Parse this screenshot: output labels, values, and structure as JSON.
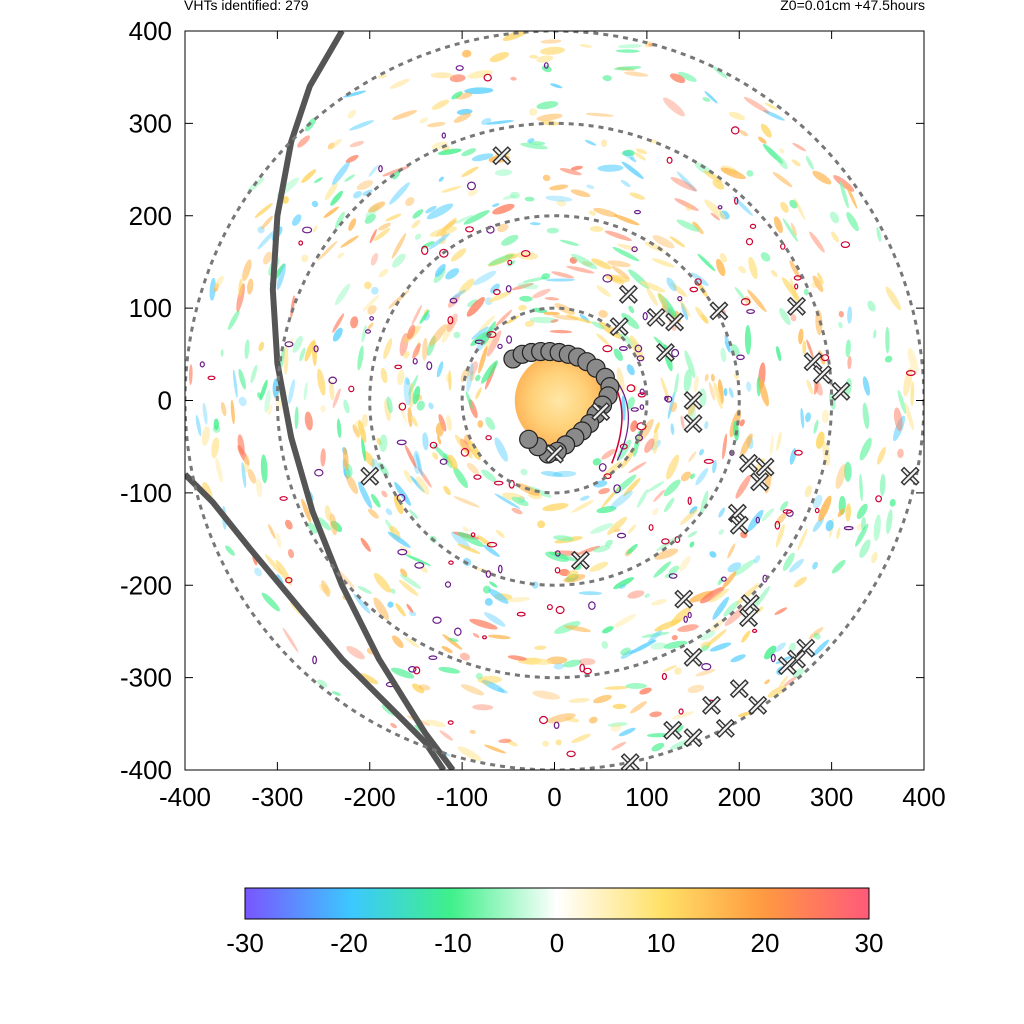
{
  "header": {
    "left": "VHTs identified: 279",
    "right": "Z0=0.01cm  +47.5hours"
  },
  "chart_data": {
    "type": "heatmap",
    "xlim": [
      -400,
      400
    ],
    "ylim": [
      -400,
      400
    ],
    "x_ticks": [
      "-400",
      "-300",
      "-200",
      "-100",
      "0",
      "100",
      "200",
      "300",
      "400"
    ],
    "y_ticks": [
      "400",
      "300",
      "200",
      "100",
      "0",
      "-100",
      "-200",
      "-300",
      "-400"
    ],
    "range_rings": [
      100,
      200,
      300,
      400
    ],
    "colorbar": {
      "min": -30,
      "max": 30,
      "ticks": [
        "-30",
        "-20",
        "-10",
        "0",
        "10",
        "20",
        "30"
      ],
      "colors": [
        "#7a55ff",
        "#3cc8ff",
        "#3ff08a",
        "#ffffff",
        "#ffe066",
        "#ff9a40",
        "#ff5a7a"
      ]
    },
    "vht_markers": [
      [
        -57,
        265
      ],
      [
        80,
        115
      ],
      [
        70,
        80
      ],
      [
        110,
        90
      ],
      [
        130,
        85
      ],
      [
        120,
        52
      ],
      [
        178,
        97
      ],
      [
        262,
        102
      ],
      [
        280,
        42
      ],
      [
        290,
        28
      ],
      [
        310,
        10
      ],
      [
        150,
        0
      ],
      [
        150,
        -25
      ],
      [
        50,
        -12
      ],
      [
        0,
        -58
      ],
      [
        210,
        -68
      ],
      [
        228,
        -72
      ],
      [
        222,
        -88
      ],
      [
        198,
        -122
      ],
      [
        200,
        -135
      ],
      [
        385,
        -82
      ],
      [
        -200,
        -82
      ],
      [
        28,
        -173
      ],
      [
        140,
        -215
      ],
      [
        212,
        -220
      ],
      [
        210,
        -235
      ],
      [
        272,
        -268
      ],
      [
        262,
        -280
      ],
      [
        252,
        -287
      ],
      [
        150,
        -278
      ],
      [
        200,
        -312
      ],
      [
        220,
        -330
      ],
      [
        170,
        -330
      ],
      [
        185,
        -355
      ],
      [
        128,
        -357
      ],
      [
        150,
        -365
      ],
      [
        82,
        -392
      ]
    ],
    "eyewall_markers": [
      [
        -45,
        45
      ],
      [
        -35,
        50
      ],
      [
        -25,
        52
      ],
      [
        -15,
        53
      ],
      [
        -5,
        53
      ],
      [
        5,
        52
      ],
      [
        15,
        50
      ],
      [
        25,
        47
      ],
      [
        35,
        42
      ],
      [
        45,
        35
      ],
      [
        55,
        25
      ],
      [
        60,
        15
      ],
      [
        58,
        5
      ],
      [
        52,
        -5
      ],
      [
        45,
        -15
      ],
      [
        38,
        -25
      ],
      [
        30,
        -33
      ],
      [
        22,
        -40
      ],
      [
        12,
        -48
      ],
      [
        3,
        -55
      ],
      [
        -7,
        -58
      ],
      [
        -18,
        -50
      ],
      [
        -28,
        -42
      ]
    ]
  }
}
